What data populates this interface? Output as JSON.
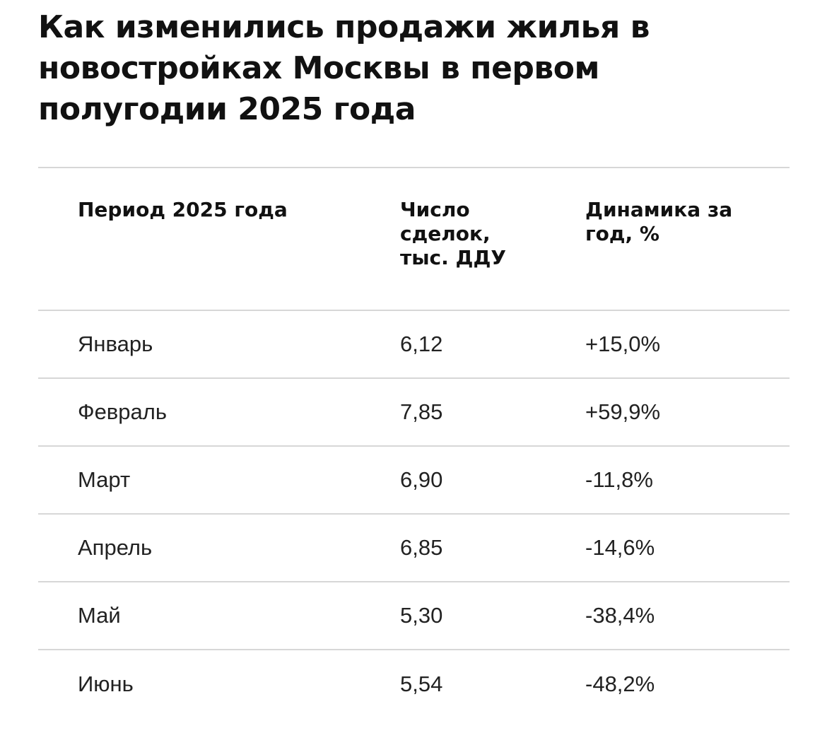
{
  "chart_data": {
    "type": "table",
    "title": "Как изменились продажи жилья в новостройках Москвы в первом полугодии 2025 года",
    "columns": [
      "Период 2025 года",
      "Число сделок, тыс. ДДУ",
      "Динамика за год, %"
    ],
    "rows": [
      {
        "period": "Январь",
        "deals": "6,12",
        "change": "+15,0%"
      },
      {
        "period": "Февраль",
        "deals": "7,85",
        "change": "+59,9%"
      },
      {
        "period": "Март",
        "deals": "6,90",
        "change": "-11,8%"
      },
      {
        "period": "Апрель",
        "deals": "6,85",
        "change": "-14,6%"
      },
      {
        "period": "Май",
        "deals": "5,30",
        "change": "-38,4%"
      },
      {
        "period": "Июнь",
        "deals": "5,54",
        "change": "-48,2%"
      }
    ]
  }
}
